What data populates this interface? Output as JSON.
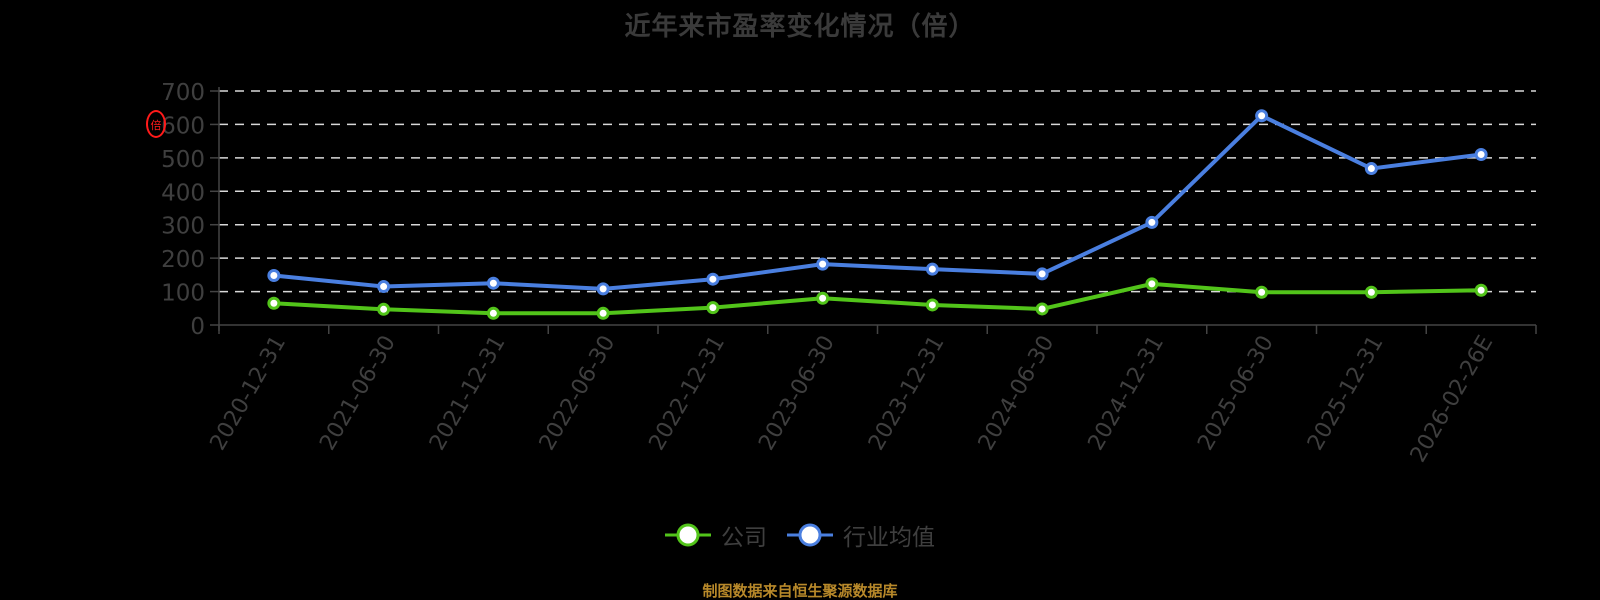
{
  "title": "近年来市盈率变化情况（倍）",
  "y_unit_mark": "倍",
  "legend": {
    "items": [
      {
        "label": "公司",
        "color": "#52c41a"
      },
      {
        "label": "行业均值",
        "color": "#4a7fe0"
      }
    ]
  },
  "footer": {
    "source": "制图数据来自恒生聚源数据库",
    "color": "#b8892a"
  },
  "colors": {
    "company": "#52c41a",
    "industry": "#4a7fe0",
    "grid": "#d9d9d9",
    "axis": "#444444",
    "tick_label": "#3f3f3f"
  },
  "chart_data": {
    "type": "line",
    "title": "近年来市盈率变化情况（倍）",
    "xlabel": "",
    "ylabel": "倍",
    "ylim": [
      0,
      700
    ],
    "yticks": [
      0,
      100,
      200,
      300,
      400,
      500,
      600,
      700
    ],
    "grid": true,
    "legend_position": "bottom",
    "categories": [
      "2020-12-31",
      "2021-06-30",
      "2021-12-31",
      "2022-06-30",
      "2022-12-31",
      "2023-06-30",
      "2023-12-31",
      "2024-06-30",
      "2024-12-31",
      "2025-06-30",
      "2025-12-31",
      "2026-02-26E"
    ],
    "series": [
      {
        "name": "公司",
        "color": "#52c41a",
        "values": [
          65,
          47,
          35,
          35,
          52,
          80,
          60,
          48,
          123,
          98,
          98,
          104
        ]
      },
      {
        "name": "行业均值",
        "color": "#4a7fe0",
        "values": [
          148,
          115,
          125,
          108,
          137,
          182,
          167,
          153,
          307,
          626,
          468,
          510
        ]
      }
    ]
  }
}
